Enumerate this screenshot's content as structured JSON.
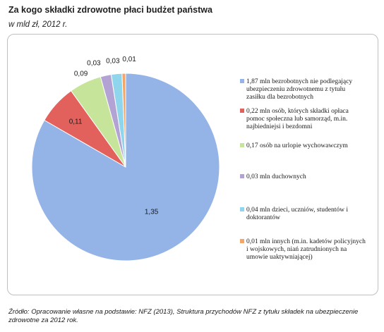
{
  "title": "Za kogo składki zdrowotne płaci budżet państwa",
  "subtitle": "w mld zł, 2012 r.",
  "source": "Źródło: Opracowanie własne na podstawie: NFZ (2013), Struktura przychodów NFZ z tytułu składek na ubezpieczenie zdrowotne za 2012 rok.",
  "chart_data": {
    "type": "pie",
    "title": "Za kogo składki zdrowotne płaci budżet państwa",
    "subtitle": "w mld zł, 2012 r.",
    "legend_position": "right",
    "slices": [
      {
        "label": "1,35",
        "value": 1.35,
        "color": "#94b3e6",
        "legend": [
          "1,87 mln bezrobotnych nie podlegający",
          "ubezpieczeniu zdrowotnemu z tytułu",
          "zasiłku dla bezrobotnych"
        ]
      },
      {
        "label": "0,11",
        "value": 0.11,
        "color": "#e3615c",
        "legend": [
          "0,22 mln osób, których składki opłaca",
          "pomoc społeczna lub samorząd, m.in.",
          "najbiedniejsi i bezdomni"
        ]
      },
      {
        "label": "0,09",
        "value": 0.09,
        "color": "#c6e59a",
        "legend": [
          "0,17 osób na urlopie wychowawczym"
        ]
      },
      {
        "label": "0,03",
        "value": 0.03,
        "color": "#b3a3d4",
        "legend": [
          "0,03 mln duchownych"
        ]
      },
      {
        "label": "0,03",
        "value": 0.03,
        "color": "#8fd6ec",
        "legend": [
          "0,04 mln dzieci, uczniów, studentów i",
          "doktorantów"
        ]
      },
      {
        "label": "0,01",
        "value": 0.01,
        "color": "#f5a565",
        "legend": [
          "0,01 mln innych (m.in. kadetów policyjnych",
          "i wojskowych, niań zatrudnionych na",
          "umowie uaktywniającej)"
        ]
      }
    ]
  }
}
